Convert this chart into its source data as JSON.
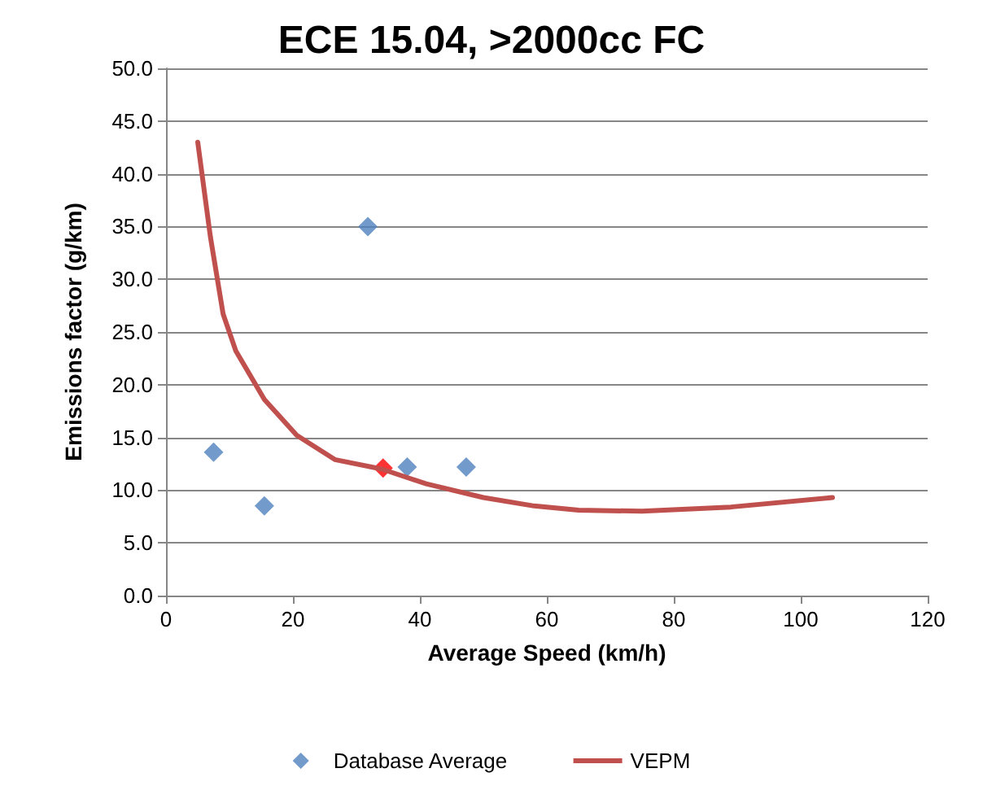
{
  "chart_data": {
    "type": "scatter",
    "title": "ECE 15.04, >2000cc FC",
    "xlabel": "Average Speed (km/h)",
    "ylabel": "Emissions factor (g/km)",
    "series": [
      {
        "name": "Database Average",
        "color": "#4f81bd",
        "marker": "diamond",
        "x": [
          7.5,
          15.5,
          31.8,
          38,
          47.3
        ],
        "values": [
          13.6,
          8.5,
          35,
          12.2,
          12.2
        ]
      },
      {
        "name": "VEPM",
        "type": "line",
        "color": "#c0504d",
        "marker": "none",
        "x": [
          5,
          7,
          9,
          11,
          15.5,
          20.6,
          26.6,
          34,
          41,
          50,
          58,
          65,
          75,
          89,
          105
        ],
        "values": [
          43,
          34,
          26.7,
          23.2,
          18.6,
          15.2,
          12.9,
          12,
          10.6,
          9.3,
          8.5,
          8.1,
          8,
          8.4,
          9.3
        ]
      },
      {
        "color": "#ff0000",
        "marker": "diamond",
        "x": [
          34.2
        ],
        "values": [
          12.1
        ]
      }
    ],
    "xlim": [
      0,
      120
    ],
    "xticks": [
      0,
      20,
      40,
      60,
      80,
      100,
      120
    ],
    "ylim": [
      0,
      50
    ],
    "yticks": [
      {
        "value": 0,
        "label": "0.0"
      },
      {
        "value": 5,
        "label": "5.0"
      },
      {
        "value": 10,
        "label": "10.0"
      },
      {
        "value": 15,
        "label": "15.0"
      },
      {
        "value": 20,
        "label": "20.0"
      },
      {
        "value": 25,
        "label": "25.0"
      },
      {
        "value": 30,
        "label": "30.0"
      },
      {
        "value": 35,
        "label": "35.0"
      },
      {
        "value": 40,
        "label": "40.0"
      },
      {
        "value": 45,
        "label": "45.0"
      },
      {
        "value": 50,
        "label": "50.0"
      }
    ],
    "grid": "y",
    "legend": "bottom"
  }
}
